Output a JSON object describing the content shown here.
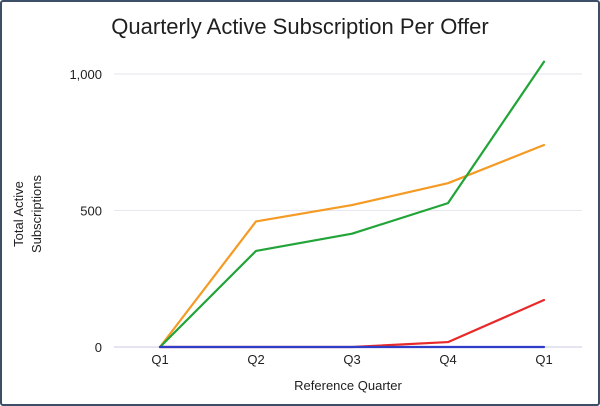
{
  "chart_data": {
    "type": "line",
    "title": "Quarterly Active Subscription Per Offer",
    "xlabel": "Reference Quarter",
    "ylabel_lines": [
      "Total Active",
      "Subscriptions"
    ],
    "categories": [
      "Q1",
      "Q2",
      "Q3",
      "Q4",
      "Q1"
    ],
    "y_ticks": [
      {
        "value": 0,
        "label": "0"
      },
      {
        "value": 500,
        "label": "500"
      },
      {
        "value": 1000,
        "label": "1,000"
      }
    ],
    "ylim": [
      0,
      1000
    ],
    "grid": true,
    "legend": "none",
    "series": [
      {
        "color": "#f59a23",
        "values": [
          0,
          460,
          520,
          600,
          740
        ]
      },
      {
        "color": "#21a438",
        "values": [
          0,
          352,
          415,
          527,
          1045
        ]
      },
      {
        "color": "#e82a2a",
        "values": [
          0,
          0,
          0,
          18,
          172
        ]
      },
      {
        "color": "#2f3ec9",
        "values": [
          0,
          0,
          0,
          0,
          0
        ]
      }
    ]
  }
}
